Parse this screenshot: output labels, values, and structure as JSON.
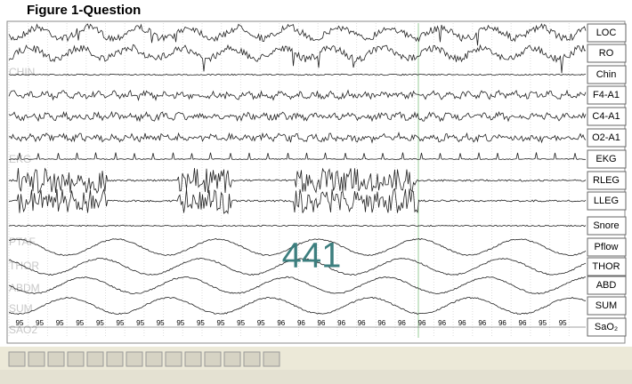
{
  "header": {
    "title": "Figure 1-Question"
  },
  "channels": [
    "LOC",
    "RO",
    "Chin",
    "F4-A1",
    "C4-A1",
    "O2-A1",
    "EKG",
    "RLEG",
    "LLEG",
    "Snore",
    "Pflow",
    "THOR",
    "ABD",
    "SUM",
    "SaO₂"
  ],
  "faint_labels": [
    "CHIN",
    "EKG",
    "PTAF",
    "THOR",
    "ABDM",
    "SUM",
    "SAO2"
  ],
  "epoch": "441",
  "sao2_readings": [
    95,
    95,
    95,
    95,
    95,
    95,
    95,
    95,
    95,
    95,
    95,
    95,
    95,
    96,
    96,
    96,
    96,
    96,
    96,
    96,
    96,
    96,
    96,
    96,
    96,
    96,
    95,
    95
  ]
}
